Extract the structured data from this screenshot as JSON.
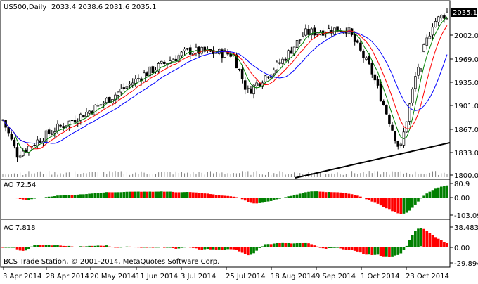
{
  "header": {
    "symbol": "US500,Daily",
    "ohlc": "2033.4 2038.6 2031.6 2035.1"
  },
  "main_panel": {
    "price_label": "2035.1",
    "y_ticks": [
      "2002.0",
      "1969.0",
      "1935.0",
      "1901.0",
      "1867.0",
      "1833.0",
      "1800.0"
    ]
  },
  "ao_panel": {
    "title": "AO 72.54",
    "y_ticks": [
      "80.9",
      "0.00",
      "-103.09"
    ]
  },
  "ac_panel": {
    "title": "AC 7.818",
    "y_ticks": [
      "38.483",
      "0.00",
      "-29.894"
    ]
  },
  "x_ticks": [
    "3 Apr 2014",
    "28 Apr 2014",
    "20 May 2014",
    "11 Jun 2014",
    "3 Jul 2014",
    "25 Jul 2014",
    "18 Aug 2014",
    "9 Sep 2014",
    "1 Oct 2014",
    "23 Oct 2014"
  ],
  "copyright": "BCS Trade Station, © 2001-2014, MetaQuotes Software Corp.",
  "colors": {
    "up": "#008000",
    "down": "#ff0000",
    "ma_fast": "#008000",
    "ma_mid": "#ff0000",
    "ma_slow": "#0000ff",
    "price_label_bg": "#000000"
  },
  "chart_data": {
    "type": "line",
    "close_path": [
      [
        "3 Apr 2014",
        1880
      ],
      [
        "10 Apr 2014",
        1830
      ],
      [
        "28 Apr 2014",
        1865
      ],
      [
        "20 May 2014",
        1900
      ],
      [
        "11 Jun 2014",
        1945
      ],
      [
        "3 Jul 2014",
        1980
      ],
      [
        "25 Jul 2014",
        1975
      ],
      [
        "1 Aug 2014",
        1920
      ],
      [
        "18 Aug 2014",
        1965
      ],
      [
        "29 Aug 2014",
        2005
      ],
      [
        "9 Sep 2014",
        2010
      ],
      [
        "19 Sep 2014",
        2012
      ],
      [
        "1 Oct 2014",
        1950
      ],
      [
        "15 Oct 2014",
        1835
      ],
      [
        "23 Oct 2014",
        1950
      ],
      [
        "31 Oct 2014",
        2020
      ],
      [
        "7 Nov 2014",
        2035.1
      ]
    ],
    "ylim": [
      1800,
      2035.1
    ]
  }
}
